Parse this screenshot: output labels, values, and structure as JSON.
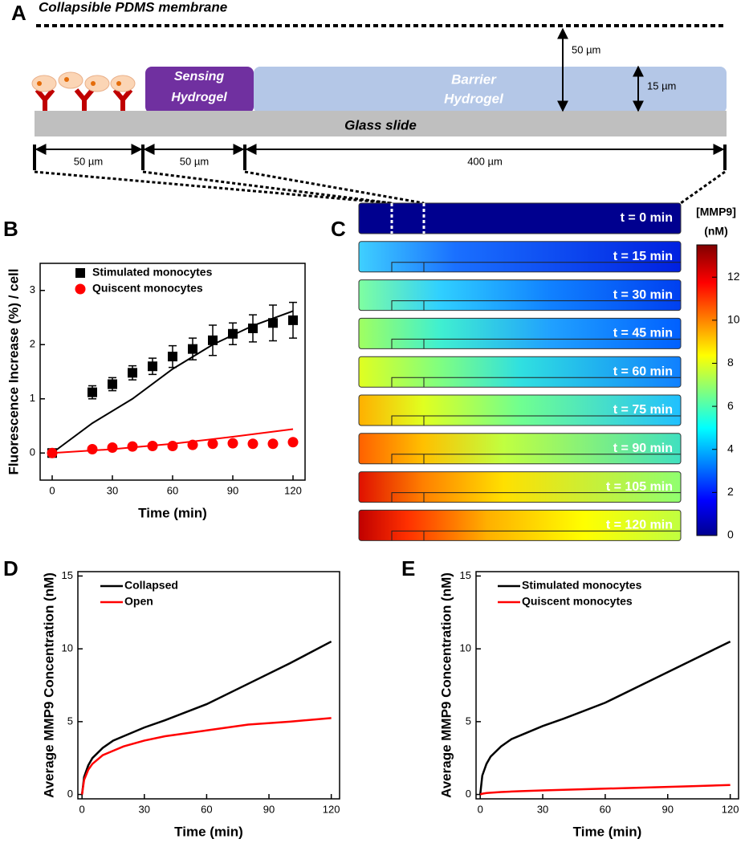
{
  "panel_labels": [
    "A",
    "B",
    "C",
    "D",
    "E"
  ],
  "diagram": {
    "membrane": "Collapsible PDMS membrane",
    "sensing": [
      "Sensing",
      "Hydrogel"
    ],
    "barrier": [
      "Barrier",
      "Hydrogel"
    ],
    "glass": "Glass slide",
    "height_labels": [
      "50 µm",
      "15 µm"
    ],
    "width_labels": [
      "50 µm",
      "50 µm",
      "400 µm"
    ]
  },
  "chart_data": [
    {
      "type": "scatter",
      "xlabel": "Time (min)",
      "ylabel": "Fluorescence Increase (%) / cell",
      "x": [
        0,
        20,
        30,
        40,
        50,
        60,
        70,
        80,
        90,
        100,
        110,
        120
      ],
      "xlim": [
        -6,
        126
      ],
      "ylim": [
        -0.5,
        3.5
      ],
      "xticks": [
        0,
        30,
        60,
        90,
        120
      ],
      "yticks": [
        0,
        1,
        2,
        3
      ],
      "series": [
        {
          "name": "Stimulated monocytes",
          "color": "#000000",
          "marker": "square",
          "values": [
            0,
            1.12,
            1.27,
            1.48,
            1.6,
            1.78,
            1.92,
            2.08,
            2.2,
            2.3,
            2.4,
            2.45
          ],
          "errors": [
            0.05,
            0.12,
            0.12,
            0.13,
            0.15,
            0.2,
            0.2,
            0.28,
            0.2,
            0.25,
            0.33,
            0.33
          ],
          "fit": {
            "x": [
              0,
              20,
              40,
              60,
              80,
              100,
              120
            ],
            "values": [
              0,
              0.55,
              1.0,
              1.55,
              2.0,
              2.35,
              2.62
            ]
          }
        },
        {
          "name": "Quiscent monocytes",
          "color": "#ff0000",
          "marker": "circle",
          "values": [
            0,
            0.07,
            0.1,
            0.12,
            0.13,
            0.13,
            0.15,
            0.17,
            0.18,
            0.17,
            0.17,
            0.2
          ],
          "fit": {
            "x": [
              0,
              30,
              60,
              90,
              120
            ],
            "values": [
              0,
              0.07,
              0.17,
              0.3,
              0.44
            ]
          }
        }
      ]
    },
    {
      "type": "colormap",
      "title": [
        "[MMP9]",
        "(nM)"
      ],
      "categories": [
        "t = 0 min",
        "t = 15 min",
        "t = 30 min",
        "t = 45 min",
        "t = 60 min",
        "t = 75 min",
        "t = 90 min",
        "t = 105 min",
        "t = 120 min"
      ],
      "ylim": [
        0,
        13.5
      ],
      "yticks": [
        0,
        2,
        4,
        6,
        8,
        10,
        12
      ]
    },
    {
      "type": "line",
      "xlabel": "Time (min)",
      "ylabel": "Average MMP9 Concentration (nM)",
      "x": [
        0,
        1,
        3,
        5,
        10,
        15,
        20,
        30,
        40,
        60,
        80,
        100,
        120
      ],
      "xlim": [
        -2,
        124
      ],
      "ylim": [
        -0.3,
        15.3
      ],
      "xticks": [
        0,
        30,
        60,
        90,
        120
      ],
      "yticks": [
        0,
        5,
        10,
        15
      ],
      "series": [
        {
          "name": "Collapsed",
          "color": "#000000",
          "values": [
            0,
            1.2,
            2.0,
            2.5,
            3.2,
            3.7,
            4.0,
            4.6,
            5.1,
            6.2,
            7.6,
            9.0,
            10.5
          ]
        },
        {
          "name": "Open",
          "color": "#ff0000",
          "values": [
            0,
            1.0,
            1.7,
            2.1,
            2.7,
            3.0,
            3.3,
            3.7,
            4.0,
            4.4,
            4.8,
            5.0,
            5.25
          ]
        }
      ]
    },
    {
      "type": "line",
      "xlabel": "Time (min)",
      "ylabel": "Average MMP9 Concentration (nM)",
      "x": [
        0,
        1,
        3,
        5,
        10,
        15,
        20,
        30,
        40,
        60,
        80,
        100,
        120
      ],
      "xlim": [
        -2,
        124
      ],
      "ylim": [
        -0.3,
        15.3
      ],
      "xticks": [
        0,
        30,
        60,
        90,
        120
      ],
      "yticks": [
        0,
        5,
        10,
        15
      ],
      "series": [
        {
          "name": "Stimulated monocytes",
          "color": "#000000",
          "values": [
            0,
            1.3,
            2.1,
            2.6,
            3.3,
            3.8,
            4.1,
            4.7,
            5.2,
            6.3,
            7.7,
            9.1,
            10.5
          ]
        },
        {
          "name": "Quiscent monocytes",
          "color": "#ff0000",
          "values": [
            0,
            0.05,
            0.1,
            0.12,
            0.17,
            0.2,
            0.23,
            0.28,
            0.32,
            0.4,
            0.48,
            0.56,
            0.65
          ]
        }
      ]
    }
  ]
}
